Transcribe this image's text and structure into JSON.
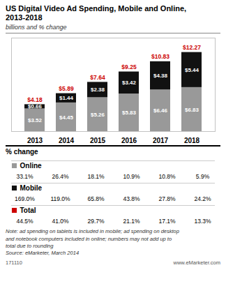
{
  "chart_data": {
    "type": "bar",
    "stacked": true,
    "title": "US Digital Video Ad Spending, Mobile and Online,\n2013-2018",
    "subtitle": "billions and % change",
    "categories": [
      "2013",
      "2014",
      "2015",
      "2016",
      "2017",
      "2018"
    ],
    "series": [
      {
        "name": "Online",
        "color": "#999999",
        "values": [
          3.52,
          4.45,
          5.26,
          5.83,
          6.46,
          6.83
        ],
        "value_labels": [
          "$3.52",
          "$4.45",
          "$5.26",
          "$5.83",
          "$6.46",
          "$6.83"
        ]
      },
      {
        "name": "Mobile",
        "color": "#111111",
        "values": [
          0.66,
          1.44,
          2.38,
          3.42,
          4.38,
          5.44
        ],
        "value_labels": [
          "$0.66",
          "$1.44",
          "$2.38",
          "$3.42",
          "$4.38",
          "$5.44"
        ]
      }
    ],
    "totals": {
      "color": "#cc0000",
      "values": [
        4.18,
        5.89,
        7.64,
        9.25,
        10.83,
        12.27
      ],
      "value_labels": [
        "$4.18",
        "$5.89",
        "$7.64",
        "$9.25",
        "$10.83",
        "$12.27"
      ]
    },
    "ylim": [
      0,
      14.5
    ],
    "tick_labels": "x",
    "data_labels": true,
    "grid": false,
    "pct_change": {
      "title": "% change",
      "series": [
        {
          "name": "Online",
          "color": "#999999",
          "values": [
            33.1,
            26.4,
            18.1,
            10.9,
            10.8,
            5.9
          ],
          "value_labels": [
            "33.1%",
            "26.4%",
            "18.1%",
            "10.9%",
            "10.8%",
            "5.9%"
          ]
        },
        {
          "name": "Mobile",
          "color": "#111111",
          "values": [
            169.0,
            119.0,
            65.8,
            43.8,
            27.8,
            24.2
          ],
          "value_labels": [
            "169.0%",
            "119.0%",
            "65.8%",
            "43.8%",
            "27.8%",
            "24.2%"
          ]
        },
        {
          "name": "Total",
          "color": "#cc0000",
          "values": [
            44.5,
            41.0,
            29.7,
            21.1,
            17.1,
            13.3
          ],
          "value_labels": [
            "44.5%",
            "41.0%",
            "29.7%",
            "21.1%",
            "17.1%",
            "13.3%"
          ]
        }
      ]
    },
    "notes": [
      "Note: ad spending on tablets is included in mobile; ad spending on desktop",
      "and notebook computers included in online; numbers may not add up to",
      "total due to rounding",
      "Source: eMarketer, March 2014"
    ],
    "footer": [
      "171110",
      "www.eMarketer.com"
    ]
  }
}
